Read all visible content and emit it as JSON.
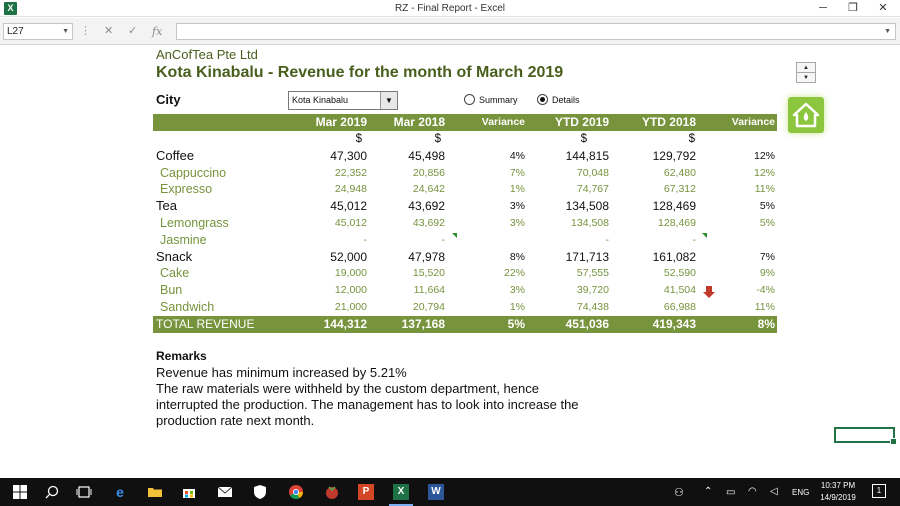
{
  "window": {
    "title": "RZ - Final Report - Excel",
    "app_icon": "X",
    "minimize": "─",
    "restore": "❐",
    "close": "✕"
  },
  "formula_bar": {
    "name_box": "L27",
    "cancel": "✕",
    "enter": "✓",
    "function": "fx",
    "formula": ""
  },
  "report": {
    "company": "AnCofTea Pte Ltd",
    "title": "Kota Kinabalu - Revenue for the month of March 2019",
    "city_label": "City",
    "city_value": "Kota Kinabalu",
    "radio_summary": "Summary",
    "radio_details": "Details",
    "selected_view": "Details",
    "headers": [
      "Mar 2019",
      "Mar 2018",
      "Variance",
      "YTD 2019",
      "YTD 2018",
      "Variance"
    ],
    "currency": [
      "$",
      "$",
      "",
      "$",
      "$",
      ""
    ],
    "rows": [
      {
        "type": "cat",
        "label": "Coffee",
        "v": [
          "47,300",
          "45,498",
          "4%",
          "144,815",
          "129,792",
          "12%"
        ]
      },
      {
        "type": "item",
        "label": "Cappuccino",
        "v": [
          "22,352",
          "20,856",
          "7%",
          "70,048",
          "62,480",
          "12%"
        ]
      },
      {
        "type": "item",
        "label": "Expresso",
        "v": [
          "24,948",
          "24,642",
          "1%",
          "74,767",
          "67,312",
          "11%"
        ]
      },
      {
        "type": "cat",
        "label": "Tea",
        "v": [
          "45,012",
          "43,692",
          "3%",
          "134,508",
          "128,469",
          "5%"
        ]
      },
      {
        "type": "item",
        "label": "Lemongrass",
        "v": [
          "45,012",
          "43,692",
          "3%",
          "134,508",
          "128,469",
          "5%"
        ]
      },
      {
        "type": "item",
        "label": "Jasmine",
        "v": [
          "-",
          "-",
          "",
          "-",
          "-",
          ""
        ]
      },
      {
        "type": "cat",
        "label": "Snack",
        "v": [
          "52,000",
          "47,978",
          "8%",
          "171,713",
          "161,082",
          "7%"
        ]
      },
      {
        "type": "item",
        "label": "Cake",
        "v": [
          "19,000",
          "15,520",
          "22%",
          "57,555",
          "52,590",
          "9%"
        ]
      },
      {
        "type": "item",
        "label": "Bun",
        "v": [
          "12,000",
          "11,664",
          "3%",
          "39,720",
          "41,504",
          "-4%"
        ]
      },
      {
        "type": "item",
        "label": "Sandwich",
        "v": [
          "21,000",
          "20,794",
          "1%",
          "74,438",
          "66,988",
          "11%"
        ]
      }
    ],
    "total": {
      "label": "TOTAL REVENUE",
      "v": [
        "144,312",
        "137,168",
        "5%",
        "451,036",
        "419,343",
        "8%"
      ]
    },
    "remarks_title": "Remarks",
    "remarks": [
      "Revenue has minimum increased by 5.21%",
      "The raw materials were withheld by the custom department, hence",
      "interrupted the production. The management has to look into increase the",
      "production rate next month."
    ]
  },
  "taskbar": {
    "language": "ENG",
    "time": "10:37 PM",
    "date": "14/9/2019",
    "notification_count": "1"
  },
  "colors": {
    "accent_green": "#77933c",
    "title_green": "#4a5f1e",
    "home_button": "#8cc63f",
    "down_arrow": "#c0392b"
  },
  "icons": [
    "excel-icon",
    "home-icon",
    "down-arrow-icon",
    "windows-start-icon",
    "search-icon",
    "task-view-icon",
    "edge-icon",
    "file-explorer-icon",
    "store-icon",
    "mail-icon",
    "security-icon",
    "chrome-icon",
    "app-icon",
    "powerpoint-icon",
    "excel-taskbar-icon",
    "word-icon"
  ]
}
